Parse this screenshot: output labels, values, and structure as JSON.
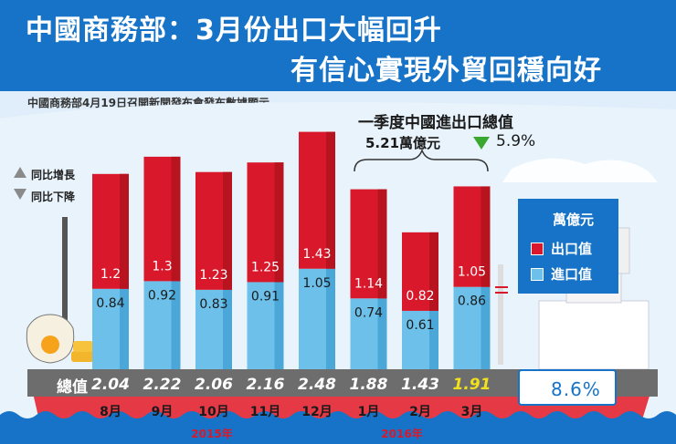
{
  "header": {
    "title_line1": "中國商務部：3月份出口大幅回升",
    "title_line2": "有信心實現外貿回穩向好"
  },
  "source_note": "中國商務部4月19日召開新聞發布會發布數據顯示",
  "arrows_legend": {
    "up": "同比增長",
    "down": "同比下降"
  },
  "summary": {
    "label": "一季度中國進出口總值",
    "value": "5.21萬億元",
    "change": "5.9%"
  },
  "legend": {
    "unit": "萬億元",
    "export": "出口值",
    "import": "進口值"
  },
  "total_label": "總值",
  "total_change": "8.6%",
  "colors": {
    "export": "#d9192b",
    "export_top": "#b8141f",
    "import": "#6cc0ea",
    "import_top": "#4aa7d8",
    "accent_yellow": "#f0e020"
  },
  "chart_data": {
    "type": "bar",
    "stacked": true,
    "categories": [
      "8月",
      "9月",
      "10月",
      "11月",
      "12月",
      "1月",
      "2月",
      "3月"
    ],
    "year_labels": [
      "2015年",
      "2016年"
    ],
    "series": [
      {
        "name": "出口值",
        "values": [
          1.2,
          1.3,
          1.23,
          1.25,
          1.43,
          1.14,
          0.82,
          1.05
        ]
      },
      {
        "name": "進口值",
        "values": [
          0.84,
          0.92,
          0.83,
          0.91,
          1.05,
          0.74,
          0.61,
          0.86
        ]
      }
    ],
    "totals": [
      "2.04",
      "2.22",
      "2.06",
      "2.16",
      "2.48",
      "1.88",
      "1.43",
      "1.91"
    ],
    "export_labels": [
      "1.2",
      "1.3",
      "1.23",
      "1.25",
      "1.43",
      "1.14",
      "0.82",
      "1.05"
    ],
    "import_labels": [
      "0.84",
      "0.92",
      "0.83",
      "0.91",
      "1.05",
      "0.74",
      "0.61",
      "0.86"
    ]
  }
}
